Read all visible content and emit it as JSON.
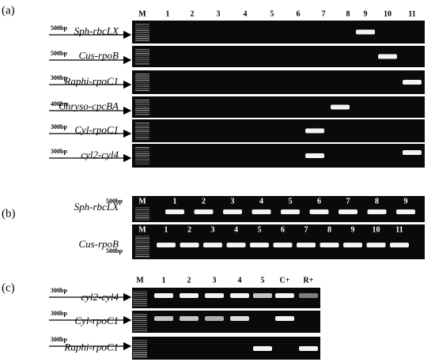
{
  "panels": [
    {
      "label": "(a)",
      "lanes": [
        "M",
        "1",
        "2",
        "3",
        "4",
        "5",
        "6",
        "7",
        "8",
        "9",
        "10",
        "11"
      ],
      "rows": [
        {
          "gene": "Sph-rbcLX",
          "marker": "500bp"
        },
        {
          "gene": "Cus-rpoB",
          "marker": "500bp"
        },
        {
          "gene": "Raphi-rpoC1",
          "marker": "300bp"
        },
        {
          "gene": "Chryso-cpcBA",
          "marker": "400bp"
        },
        {
          "gene": "Cyl-rpoC1",
          "marker": "300bp"
        },
        {
          "gene": "cyl2-cyl4",
          "marker": "300bp"
        }
      ]
    },
    {
      "label": "(b)",
      "gels": [
        {
          "lanes": [
            "M",
            "1",
            "2",
            "3",
            "4",
            "5",
            "6",
            "7",
            "8",
            "9"
          ],
          "gene": "Sph-rbcLX",
          "marker": "500bp"
        },
        {
          "lanes": [
            "M",
            "1",
            "2",
            "3",
            "4",
            "5",
            "6",
            "7",
            "8",
            "9",
            "10",
            "11"
          ],
          "gene": "Cus-rpoB",
          "marker": "500bp"
        }
      ]
    },
    {
      "label": "(c)",
      "lanes": [
        "M",
        "1",
        "2",
        "3",
        "4",
        "5",
        "C+",
        "R+"
      ],
      "rows": [
        {
          "gene": "cyl2-cyl4",
          "marker": "300bp"
        },
        {
          "gene": "Cyl-rpoC1",
          "marker": "300bp"
        },
        {
          "gene": "Raphi-rpoC1",
          "marker": "300bp"
        }
      ]
    }
  ]
}
